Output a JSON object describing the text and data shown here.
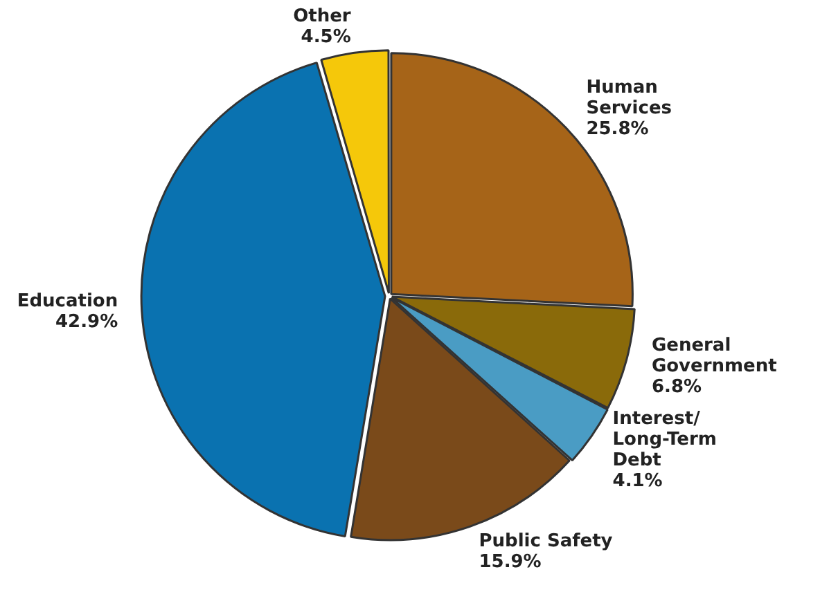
{
  "chart_data": {
    "type": "pie",
    "categories": [
      "Human Services",
      "General Government",
      "Interest/Long-Term Debt",
      "Public Safety",
      "Education",
      "Other"
    ],
    "values": [
      25.8,
      6.8,
      4.1,
      15.9,
      42.9,
      4.5
    ],
    "value_labels": [
      "25.8%",
      "6.8%",
      "4.1%",
      "15.9%",
      "42.9%",
      "4.5%"
    ],
    "colors": [
      "#a66418",
      "#8a6a0a",
      "#4a9cc4",
      "#7a4a1a",
      "#0a72b0",
      "#f5c80a"
    ],
    "legend": false
  }
}
